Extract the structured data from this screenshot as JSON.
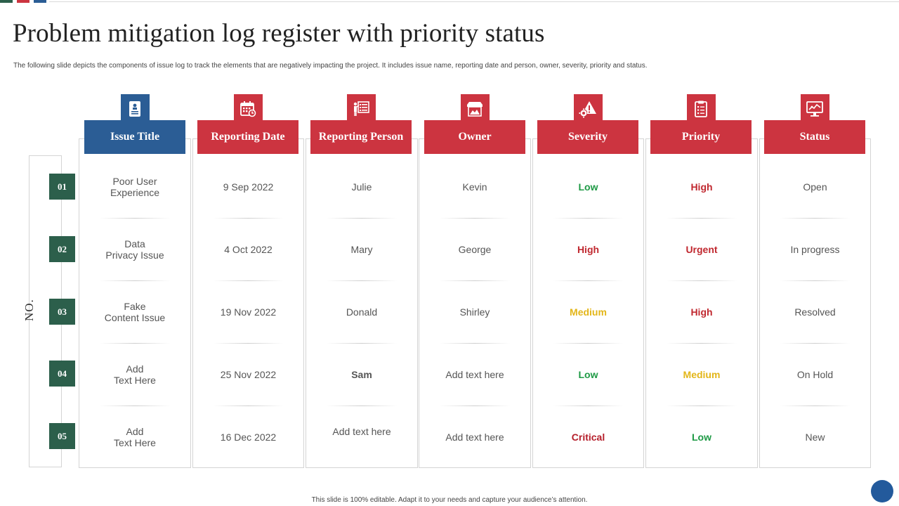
{
  "title": "Problem mitigation log register with priority status",
  "subtitle": "The following slide depicts the components of issue log to track the elements that are negatively impacting the project. It includes issue name, reporting date and person, owner, severity, priority and status.",
  "footer": "This slide is 100% editable. Adapt it to your needs and capture your audience’s attention.",
  "no_label": "NO.",
  "colors": {
    "header_blue": "#2b5d95",
    "header_red": "#cc3440",
    "badge_green": "#2c5f4b",
    "low": "#1e9a45",
    "high": "#c0282f",
    "medium": "#e3b619",
    "critical": "#b51e2a",
    "text": "#555555"
  },
  "columns": [
    {
      "label": "Issue Title",
      "icon": "id-card-icon"
    },
    {
      "label": "Reporting Date",
      "icon": "calendar-icon"
    },
    {
      "label": "Reporting Person",
      "icon": "presenter-board-icon"
    },
    {
      "label": "Owner",
      "icon": "storefront-icon"
    },
    {
      "label": "Severity",
      "icon": "gear-warning-icon"
    },
    {
      "label": "Priority",
      "icon": "checklist-icon"
    },
    {
      "label": "Status",
      "icon": "monitor-chart-icon"
    }
  ],
  "rows": [
    {
      "no": "01",
      "issue": "Poor User\nExperience",
      "date": "9 Sep 2022",
      "person": "Julie",
      "owner": "Kevin",
      "severity": "Low",
      "priority": "High",
      "status": "Open"
    },
    {
      "no": "02",
      "issue": "Data\nPrivacy Issue",
      "date": "4 Oct 2022",
      "person": "Mary",
      "owner": "George",
      "severity": "High",
      "priority": "Urgent",
      "status": "In progress"
    },
    {
      "no": "03",
      "issue": "Fake\nContent Issue",
      "date": "19 Nov  2022",
      "person": "Donald",
      "owner": "Shirley",
      "severity": "Medium",
      "priority": "High",
      "status": "Resolved"
    },
    {
      "no": "04",
      "issue": "Add\nText Here",
      "date": "25 Nov  2022",
      "person": "Sam",
      "owner": "Add text here",
      "severity": "Low",
      "priority": "Medium",
      "status": "On Hold"
    },
    {
      "no": "05",
      "issue": "Add\nText Here",
      "date": "16 Dec 2022",
      "person": "Add text here",
      "owner": "Add text here",
      "severity": "Critical",
      "priority": "Low",
      "status": "New"
    }
  ]
}
